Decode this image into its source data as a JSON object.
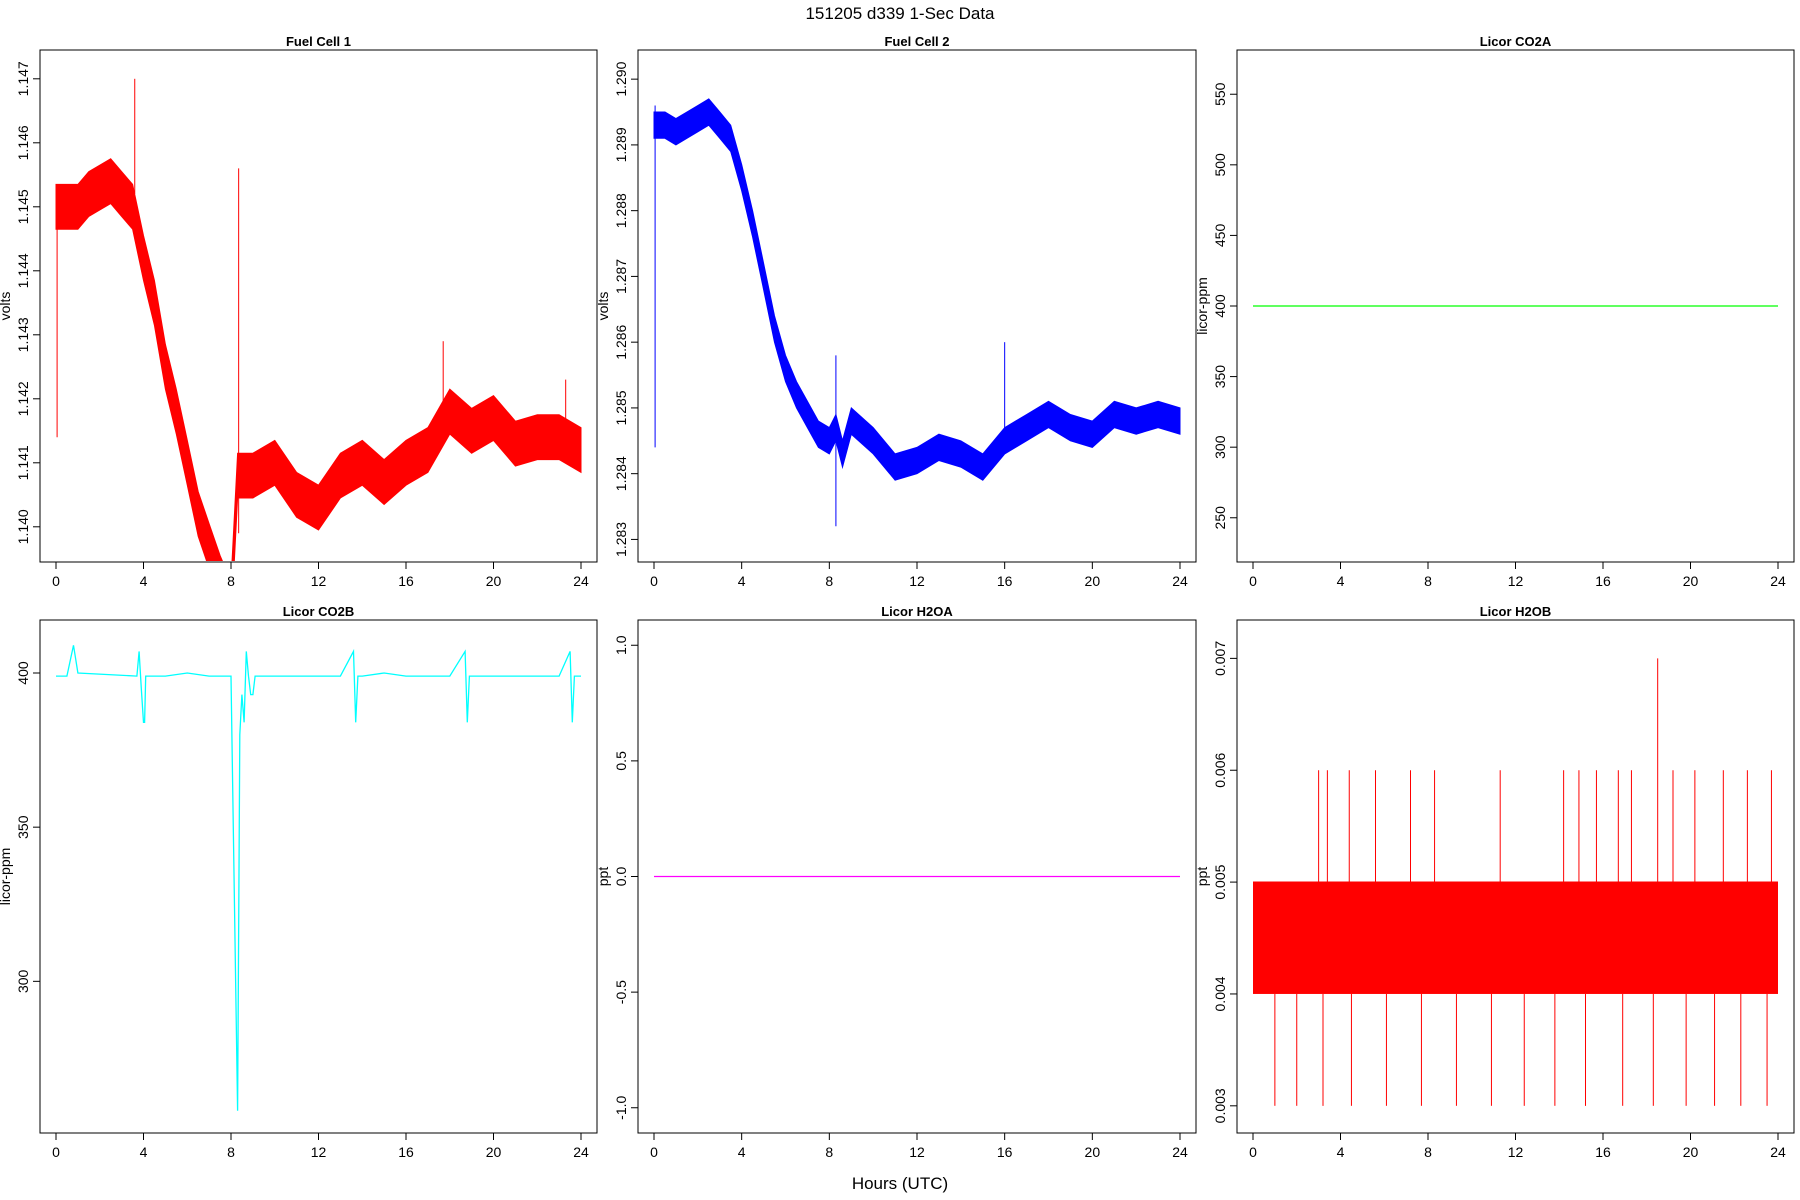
{
  "figure_title": "151205   d339   1-Sec Data",
  "x_axis_label": "Hours (UTC)",
  "chart_data": [
    {
      "type": "line",
      "title": "Fuel Cell 1",
      "ylabel": "volts",
      "xlim": [
        0,
        24
      ],
      "ylim": [
        1.1397,
        1.1472
      ],
      "xticks": [
        "0",
        "4",
        "8",
        "12",
        "16",
        "20",
        "24"
      ],
      "yticks": [
        "1.140",
        "1.141",
        "1.142",
        "1.143",
        "1.144",
        "1.145",
        "1.146",
        "1.147"
      ],
      "color": "#ff0000",
      "band_width": 0.0007,
      "series": [
        {
          "x": [
            0,
            0.5,
            1,
            1.5,
            2,
            2.5,
            3,
            3.5,
            4,
            4.5,
            5,
            5.5,
            6,
            6.5,
            7,
            7.5,
            8,
            8.3,
            8.6,
            9,
            10,
            11,
            12,
            13,
            14,
            15,
            16,
            17,
            18,
            19,
            20,
            21,
            22,
            23,
            24
          ],
          "values": [
            1.145,
            1.145,
            1.145,
            1.1452,
            1.1453,
            1.1454,
            1.1452,
            1.145,
            1.1442,
            1.1435,
            1.1425,
            1.1418,
            1.141,
            1.1402,
            1.1397,
            1.1392,
            1.1388,
            1.1408,
            1.1408,
            1.1408,
            1.141,
            1.1405,
            1.1403,
            1.1408,
            1.141,
            1.1407,
            1.141,
            1.1412,
            1.1418,
            1.1415,
            1.1417,
            1.1413,
            1.1414,
            1.1414,
            1.1412
          ]
        }
      ],
      "spikes": [
        {
          "x": 0.05,
          "from": 1.1414,
          "to": 1.1447
        },
        {
          "x": 3.6,
          "from": 1.1452,
          "to": 1.147
        },
        {
          "x": 8.35,
          "from": 1.1399,
          "to": 1.1456
        },
        {
          "x": 17.7,
          "from": 1.1418,
          "to": 1.1429
        },
        {
          "x": 23.3,
          "from": 1.1415,
          "to": 1.1423
        }
      ]
    },
    {
      "type": "line",
      "title": "Fuel Cell 2",
      "ylabel": "volts",
      "xlim": [
        0,
        24
      ],
      "ylim": [
        1.2829,
        1.2902
      ],
      "xticks": [
        "0",
        "4",
        "8",
        "12",
        "16",
        "20",
        "24"
      ],
      "yticks": [
        "1.283",
        "1.284",
        "1.285",
        "1.286",
        "1.287",
        "1.288",
        "1.289",
        "1.290"
      ],
      "color": "#0000ff",
      "band_width": 0.0004,
      "series": [
        {
          "x": [
            0,
            0.5,
            1,
            1.5,
            2,
            2.5,
            3,
            3.5,
            4,
            4.5,
            5,
            5.5,
            6,
            6.5,
            7,
            7.5,
            8,
            8.3,
            8.6,
            9,
            10,
            11,
            12,
            13,
            14,
            15,
            16,
            17,
            18,
            19,
            20,
            21,
            22,
            23,
            24
          ],
          "values": [
            1.2893,
            1.2893,
            1.2892,
            1.2893,
            1.2894,
            1.2895,
            1.2893,
            1.2891,
            1.2885,
            1.2878,
            1.287,
            1.2862,
            1.2856,
            1.2852,
            1.2849,
            1.2846,
            1.2845,
            1.2847,
            1.2843,
            1.2848,
            1.2845,
            1.2841,
            1.2842,
            1.2844,
            1.2843,
            1.2841,
            1.2845,
            1.2847,
            1.2849,
            1.2847,
            1.2846,
            1.2849,
            1.2848,
            1.2849,
            1.2848
          ]
        }
      ],
      "spikes": [
        {
          "x": 0.05,
          "from": 1.2844,
          "to": 1.2896
        },
        {
          "x": 8.3,
          "from": 1.2832,
          "to": 1.2858
        },
        {
          "x": 16.0,
          "from": 1.2846,
          "to": 1.286
        }
      ]
    },
    {
      "type": "line",
      "title": "Licor CO2A",
      "ylabel": "licor-ppm",
      "xlim": [
        0,
        24
      ],
      "ylim": [
        230,
        570
      ],
      "xticks": [
        "0",
        "4",
        "8",
        "12",
        "16",
        "20",
        "24"
      ],
      "yticks": [
        "250",
        "300",
        "350",
        "400",
        "450",
        "500",
        "550"
      ],
      "color": "#00ff00",
      "band_width": 0,
      "series": [
        {
          "x": [
            0,
            24
          ],
          "values": [
            400,
            400
          ]
        }
      ],
      "spikes": []
    },
    {
      "type": "line",
      "title": "Licor CO2B",
      "ylabel": "licor-ppm",
      "xlim": [
        0,
        24
      ],
      "ylim": [
        256,
        412
      ],
      "xticks": [
        "0",
        "4",
        "8",
        "12",
        "16",
        "20",
        "24"
      ],
      "yticks": [
        "300",
        "350",
        "400"
      ],
      "color": "#00ffff",
      "band_width": 0,
      "series": [
        {
          "x": [
            0,
            0.5,
            0.8,
            1,
            3.7,
            3.8,
            3.9,
            4.0,
            4.05,
            4.1,
            5,
            6,
            7,
            8,
            8.3,
            8.4,
            8.5,
            8.6,
            8.7,
            8.8,
            8.9,
            9.0,
            9.1,
            9.3,
            10,
            12,
            13,
            13.6,
            13.7,
            13.8,
            13.9,
            14,
            15,
            16,
            17,
            18,
            18.7,
            18.8,
            18.9,
            19.0,
            19.1,
            20,
            21,
            22,
            23,
            23.5,
            23.6,
            23.7,
            23.8,
            24
          ],
          "values": [
            399,
            399,
            409,
            400,
            399,
            407,
            395,
            384,
            384,
            399,
            399,
            400,
            399,
            399,
            258,
            380,
            393,
            384,
            407,
            399,
            393,
            393,
            399,
            399,
            399,
            399,
            399,
            407,
            384,
            399,
            399,
            399,
            400,
            399,
            399,
            399,
            407,
            384,
            399,
            399,
            399,
            399,
            399,
            399,
            399,
            407,
            384,
            399,
            399,
            399
          ]
        }
      ],
      "spikes": []
    },
    {
      "type": "line",
      "title": "Licor H2OA",
      "ylabel": "ppt",
      "xlim": [
        0,
        24
      ],
      "ylim": [
        -1.04,
        1.04
      ],
      "xticks": [
        "0",
        "4",
        "8",
        "12",
        "16",
        "20",
        "24"
      ],
      "yticks": [
        "-1.0",
        "-0.5",
        "0.0",
        "0.5",
        "1.0"
      ],
      "color": "#ff00ff",
      "band_width": 0,
      "series": [
        {
          "x": [
            0,
            24
          ],
          "values": [
            0,
            0
          ]
        }
      ],
      "spikes": []
    },
    {
      "type": "line",
      "title": "Licor H2OB",
      "ylabel": "ppt",
      "xlim": [
        0,
        24
      ],
      "ylim": [
        0.0029,
        0.0072
      ],
      "xticks": [
        "0",
        "4",
        "8",
        "12",
        "16",
        "20",
        "24"
      ],
      "yticks": [
        "0.003",
        "0.004",
        "0.005",
        "0.006",
        "0.007"
      ],
      "color": "#ff0000",
      "band_width": 0,
      "series": [
        {
          "x": [
            0,
            24
          ],
          "values": [
            0.005,
            0.005
          ]
        }
      ],
      "fill_band": [
        0.004,
        0.005
      ],
      "spikes": [
        {
          "x": 3.0,
          "from": 0.005,
          "to": 0.006
        },
        {
          "x": 3.4,
          "from": 0.005,
          "to": 0.006
        },
        {
          "x": 4.4,
          "from": 0.005,
          "to": 0.006
        },
        {
          "x": 5.6,
          "from": 0.005,
          "to": 0.006
        },
        {
          "x": 7.2,
          "from": 0.005,
          "to": 0.006
        },
        {
          "x": 8.3,
          "from": 0.005,
          "to": 0.006
        },
        {
          "x": 11.3,
          "from": 0.005,
          "to": 0.006
        },
        {
          "x": 14.2,
          "from": 0.005,
          "to": 0.006
        },
        {
          "x": 14.9,
          "from": 0.005,
          "to": 0.006
        },
        {
          "x": 15.7,
          "from": 0.005,
          "to": 0.006
        },
        {
          "x": 16.7,
          "from": 0.005,
          "to": 0.006
        },
        {
          "x": 17.3,
          "from": 0.005,
          "to": 0.006
        },
        {
          "x": 18.5,
          "from": 0.005,
          "to": 0.007
        },
        {
          "x": 19.2,
          "from": 0.005,
          "to": 0.006
        },
        {
          "x": 20.2,
          "from": 0.005,
          "to": 0.006
        },
        {
          "x": 21.5,
          "from": 0.005,
          "to": 0.006
        },
        {
          "x": 22.6,
          "from": 0.005,
          "to": 0.006
        },
        {
          "x": 23.7,
          "from": 0.005,
          "to": 0.006
        },
        {
          "x": 1.0,
          "from": 0.004,
          "to": 0.003
        },
        {
          "x": 2.0,
          "from": 0.004,
          "to": 0.003
        },
        {
          "x": 3.2,
          "from": 0.004,
          "to": 0.003
        },
        {
          "x": 4.5,
          "from": 0.004,
          "to": 0.003
        },
        {
          "x": 6.1,
          "from": 0.004,
          "to": 0.003
        },
        {
          "x": 7.7,
          "from": 0.004,
          "to": 0.003
        },
        {
          "x": 9.3,
          "from": 0.004,
          "to": 0.003
        },
        {
          "x": 10.9,
          "from": 0.004,
          "to": 0.003
        },
        {
          "x": 12.4,
          "from": 0.004,
          "to": 0.003
        },
        {
          "x": 13.8,
          "from": 0.004,
          "to": 0.003
        },
        {
          "x": 15.2,
          "from": 0.004,
          "to": 0.003
        },
        {
          "x": 16.9,
          "from": 0.004,
          "to": 0.003
        },
        {
          "x": 18.3,
          "from": 0.004,
          "to": 0.003
        },
        {
          "x": 19.8,
          "from": 0.004,
          "to": 0.003
        },
        {
          "x": 21.1,
          "from": 0.004,
          "to": 0.003
        },
        {
          "x": 22.3,
          "from": 0.004,
          "to": 0.003
        },
        {
          "x": 23.5,
          "from": 0.004,
          "to": 0.003
        }
      ]
    }
  ]
}
